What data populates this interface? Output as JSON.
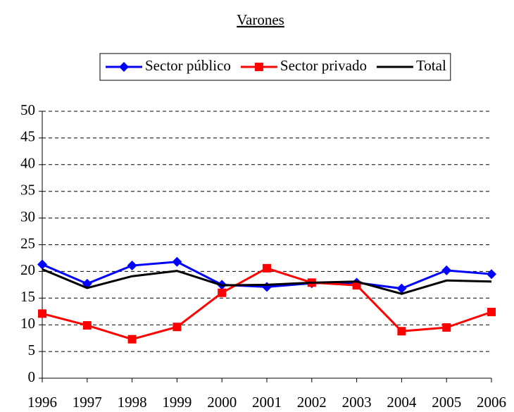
{
  "chart_data": {
    "type": "line",
    "title": "Varones",
    "categories": [
      "1996",
      "1997",
      "1998",
      "1999",
      "2000",
      "2001",
      "2002",
      "2003",
      "2004",
      "2005",
      "2006"
    ],
    "series": [
      {
        "name": "Sector público",
        "color": "#0000ff",
        "marker": "diamond",
        "values": [
          21.3,
          17.7,
          21.1,
          21.8,
          17.5,
          17.1,
          17.8,
          17.9,
          16.8,
          20.2,
          19.5
        ]
      },
      {
        "name": "Sector privado",
        "color": "#ff0000",
        "marker": "square",
        "values": [
          12.1,
          9.9,
          7.3,
          9.6,
          16.0,
          20.6,
          17.9,
          17.4,
          8.8,
          9.5,
          12.4
        ]
      },
      {
        "name": "Total",
        "color": "#000000",
        "marker": "none",
        "values": [
          20.4,
          16.9,
          19.1,
          20.1,
          17.4,
          17.5,
          17.9,
          18.1,
          15.8,
          18.3,
          18.1
        ]
      }
    ],
    "ylim": [
      0,
      50
    ],
    "yticks": [
      0,
      5,
      10,
      15,
      20,
      25,
      30,
      35,
      40,
      45,
      50
    ],
    "grid": true,
    "legend": "top"
  }
}
